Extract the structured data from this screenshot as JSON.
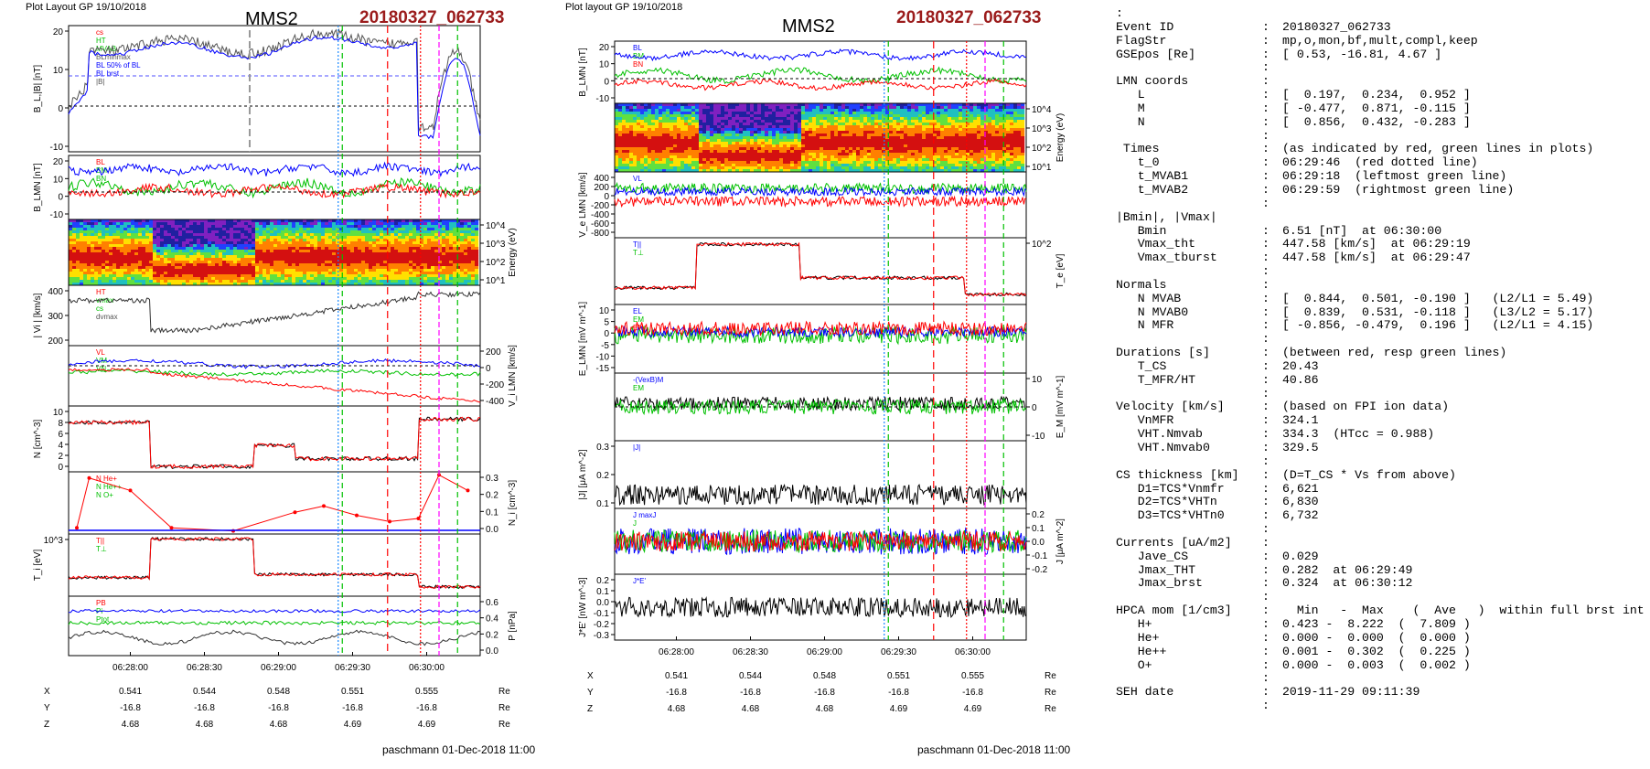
{
  "left_header": {
    "title": "Plot Layout GP 19/10/2018",
    "spacecraft": "MMS2",
    "event": "20180327_062733"
  },
  "mid_header": {
    "title": "Plot layout GP 19/10/2018",
    "spacecraft": "MMS2",
    "event": "20180327_062733"
  },
  "footer": {
    "left": "paschmann 01-Dec-2018 11:00",
    "mid": "paschmann 01-Dec-2018 11:00"
  },
  "colors": {
    "event_red": "#9b1c1c",
    "line_red": "#ff0000",
    "line_green": "#00c000",
    "line_blue": "#0000ff",
    "line_magenta": "#ff00ff"
  },
  "chart_data": [
    {
      "type": "line",
      "title": "MMS2",
      "time_ticks": [
        "06:28:00",
        "06:28:30",
        "06:29:00",
        "06:29:30",
        "06:30:00"
      ],
      "panels": [
        {
          "ylabel": "B_L,|B| [nT]",
          "yticks": [
            "20",
            "10",
            "0",
            "-10"
          ],
          "legend": [
            "cs",
            "HT",
            "MVAB",
            "BLminmax",
            "BL 50% of BL",
            "BL brst",
            "|B|"
          ]
        },
        {
          "ylabel": "B_LMN [nT]",
          "yticks": [
            "20",
            "10",
            "0",
            "-10"
          ],
          "legend": [
            "BL",
            "BM",
            "BN"
          ]
        },
        {
          "ylabel": "Energy (eV)",
          "yticks": [
            "10^4",
            "10^3",
            "10^2",
            "10^1"
          ],
          "legend": []
        },
        {
          "ylabel": "| Vi | [km/s]",
          "yticks": [
            "400",
            "300",
            "200"
          ],
          "legend": [
            "HT",
            "vmax",
            "cs",
            "dvmax"
          ]
        },
        {
          "ylabel": "V_i LMN [km/s]",
          "yticks": [
            "200",
            "0",
            "-200",
            "-400"
          ],
          "legend": [
            "VL",
            "VM",
            "VN"
          ]
        },
        {
          "ylabel": "N [cm^-3]",
          "yticks": [
            "10",
            "8",
            "6",
            "4",
            "2",
            "0"
          ],
          "legend": []
        },
        {
          "ylabel": "N_i [cm^-3]",
          "yticks": [
            "0.3",
            "0.2",
            "0.1",
            "0.0"
          ],
          "legend": [
            "N He+",
            "N He++",
            "N O+"
          ]
        },
        {
          "ylabel": "T_i [eV]",
          "yticks": [
            "10^3"
          ],
          "legend": [
            "T||",
            "T⊥"
          ]
        },
        {
          "ylabel": "P [nPa]",
          "yticks": [
            "0.6",
            "0.4",
            "0.2",
            "0.0"
          ],
          "legend": [
            "PB",
            "Pi",
            "Ptot"
          ]
        }
      ],
      "position_table": {
        "X": [
          "0.541",
          "0.544",
          "0.548",
          "0.551",
          "0.555"
        ],
        "Y": [
          "-16.8",
          "-16.8",
          "-16.8",
          "-16.8",
          "-16.8"
        ],
        "Z": [
          "4.68",
          "4.68",
          "4.68",
          "4.69",
          "4.69"
        ],
        "unit": "Re"
      }
    },
    {
      "type": "line",
      "title": "MMS2",
      "time_ticks": [
        "06:28:00",
        "06:28:30",
        "06:29:00",
        "06:29:30",
        "06:30:00"
      ],
      "panels": [
        {
          "ylabel": "B_LMN [nT]",
          "yticks": [
            "20",
            "10",
            "0",
            "-10"
          ],
          "legend": [
            "BL",
            "BM",
            "BN"
          ]
        },
        {
          "ylabel": "Energy (eV)",
          "yticks": [
            "10^4",
            "10^3",
            "10^2",
            "10^1"
          ],
          "legend": []
        },
        {
          "ylabel": "V_e LMN [km/s]",
          "yticks": [
            "400",
            "200",
            "0",
            "-200",
            "-400",
            "-600",
            "-800"
          ],
          "legend": [
            "VL"
          ]
        },
        {
          "ylabel": "T_e [eV]",
          "yticks": [
            "10^2"
          ],
          "legend": [
            "T||",
            "T⊥"
          ]
        },
        {
          "ylabel": "E_LMN [mV m^-1]",
          "yticks": [
            "10",
            "5",
            "0",
            "-5",
            "-10",
            "-15"
          ],
          "legend": [
            "EL",
            "EM",
            "EN"
          ]
        },
        {
          "ylabel": "E_M [mV m^-1]",
          "yticks": [
            "10",
            "0",
            "-10"
          ],
          "legend": [
            "-(VexB)M",
            "EM"
          ]
        },
        {
          "ylabel": "|J| [μA m^-2]",
          "yticks": [
            "0.3",
            "0.2",
            "0.1"
          ],
          "legend": [
            "|J|"
          ]
        },
        {
          "ylabel": "J [μA m^-2]",
          "yticks": [
            "0.2",
            "0.1",
            "0.0",
            "-0.1",
            "-0.2"
          ],
          "legend": [
            "J maxJ",
            "J"
          ]
        },
        {
          "ylabel": "J*E' [nW m^-3]",
          "yticks": [
            "0.2",
            "0.1",
            "0.0",
            "-0.1",
            "-0.2",
            "-0.3"
          ],
          "legend": [
            "J*E'"
          ]
        }
      ],
      "position_table": {
        "X": [
          "0.541",
          "0.544",
          "0.548",
          "0.551",
          "0.555"
        ],
        "Y": [
          "-16.8",
          "-16.8",
          "-16.8",
          "-16.8",
          "-16.8"
        ],
        "Z": [
          "4.68",
          "4.68",
          "4.68",
          "4.69",
          "4.69"
        ],
        "unit": "Re"
      }
    }
  ],
  "metadata": [
    {
      "k": ":",
      "s": "",
      "v": ""
    },
    {
      "k": "Event ID",
      "s": ":",
      "v": "20180327_062733"
    },
    {
      "k": "FlagStr",
      "s": ":",
      "v": "mp,o,mon,bf,mult,compl,keep"
    },
    {
      "k": "GSEpos [Re]",
      "s": ":",
      "v": "[ 0.53, -16.81, 4.67 ]"
    },
    {
      "k": "",
      "s": ":",
      "v": ""
    },
    {
      "k": "LMN coords",
      "s": ":",
      "v": ""
    },
    {
      "k": "   L",
      "s": ":",
      "v": "[  0.197,  0.234,  0.952 ]"
    },
    {
      "k": "   M",
      "s": ":",
      "v": "[ -0.477,  0.871, -0.115 ]"
    },
    {
      "k": "   N",
      "s": ":",
      "v": "[  0.856,  0.432, -0.283 ]"
    },
    {
      "k": "",
      "s": ":",
      "v": ""
    },
    {
      "k": " Times",
      "s": ":",
      "v": "(as indicated by red, green lines in plots)"
    },
    {
      "k": "   t_0",
      "s": ":",
      "v": "06:29:46  (red dotted line)"
    },
    {
      "k": "   t_MVAB1",
      "s": ":",
      "v": "06:29:18  (leftmost green line)"
    },
    {
      "k": "   t_MVAB2",
      "s": ":",
      "v": "06:29:59  (rightmost green line)"
    },
    {
      "k": "",
      "s": ":",
      "v": ""
    },
    {
      "k": "|Bmin|, |Vmax|",
      "s": "",
      "v": ""
    },
    {
      "k": "   Bmin",
      "s": ":",
      "v": "6.51 [nT]  at 06:30:00"
    },
    {
      "k": "   Vmax_tht",
      "s": ":",
      "v": "447.58 [km/s]  at 06:29:19"
    },
    {
      "k": "   Vmax_tburst",
      "s": ":",
      "v": "447.58 [km/s]  at 06:29:47"
    },
    {
      "k": "",
      "s": ":",
      "v": ""
    },
    {
      "k": "Normals",
      "s": ":",
      "v": ""
    },
    {
      "k": "   N MVAB",
      "s": ":",
      "v": "[  0.844,  0.501, -0.190 ]   (L2/L1 = 5.49)"
    },
    {
      "k": "   N MVAB0",
      "s": ":",
      "v": "[  0.839,  0.531, -0.118 ]   (L3/L2 = 5.17)"
    },
    {
      "k": "   N MFR",
      "s": ":",
      "v": "[ -0.856, -0.479,  0.196 ]   (L2/L1 = 4.15)"
    },
    {
      "k": "",
      "s": ":",
      "v": ""
    },
    {
      "k": "Durations [s]",
      "s": ":",
      "v": "(between red, resp green lines)"
    },
    {
      "k": "   T_CS",
      "s": ":",
      "v": "20.43"
    },
    {
      "k": "   T_MFR/HT",
      "s": ":",
      "v": "40.86"
    },
    {
      "k": "",
      "s": ":",
      "v": ""
    },
    {
      "k": "Velocity [km/s]",
      "s": ":",
      "v": "(based on FPI ion data)"
    },
    {
      "k": "   VnMFR",
      "s": ":",
      "v": "324.1"
    },
    {
      "k": "   VHT.Nmvab",
      "s": ":",
      "v": "334.3  (HTcc = 0.988)"
    },
    {
      "k": "   VHT.Nmvab0",
      "s": ":",
      "v": "329.5"
    },
    {
      "k": "",
      "s": ":",
      "v": ""
    },
    {
      "k": "CS thickness [km]",
      "s": ":",
      "v": "(D=T_CS * Vs from above)"
    },
    {
      "k": "   D1=TCS*Vnmfr",
      "s": ":",
      "v": "6,621"
    },
    {
      "k": "   D2=TCS*VHTn",
      "s": ":",
      "v": "6,830"
    },
    {
      "k": "   D3=TCS*VHTn0",
      "s": ":",
      "v": "6,732"
    },
    {
      "k": "",
      "s": ":",
      "v": ""
    },
    {
      "k": "Currents [uA/m2]",
      "s": ":",
      "v": ""
    },
    {
      "k": "   Jave_CS",
      "s": ":",
      "v": "0.029"
    },
    {
      "k": "   Jmax_THT",
      "s": ":",
      "v": "0.282  at 06:29:49"
    },
    {
      "k": "   Jmax_brst",
      "s": ":",
      "v": "0.324  at 06:30:12"
    },
    {
      "k": "",
      "s": ":",
      "v": ""
    },
    {
      "k": "HPCA mom [1/cm3]",
      "s": ":",
      "v": "  Min   -  Max    (  Ave   )  within full brst int"
    },
    {
      "k": "   H+",
      "s": ":",
      "v": "0.423 -  8.222  (  7.809 )"
    },
    {
      "k": "   He+",
      "s": ":",
      "v": "0.000 -  0.000  (  0.000 )"
    },
    {
      "k": "   He++",
      "s": ":",
      "v": "0.001 -  0.302  (  0.225 )"
    },
    {
      "k": "   O+",
      "s": ":",
      "v": "0.000 -  0.003  (  0.002 )"
    },
    {
      "k": "",
      "s": ":",
      "v": ""
    },
    {
      "k": "SEH date",
      "s": ":",
      "v": "2019-11-29 09:11:39"
    },
    {
      "k": "",
      "s": ":",
      "v": ""
    }
  ]
}
